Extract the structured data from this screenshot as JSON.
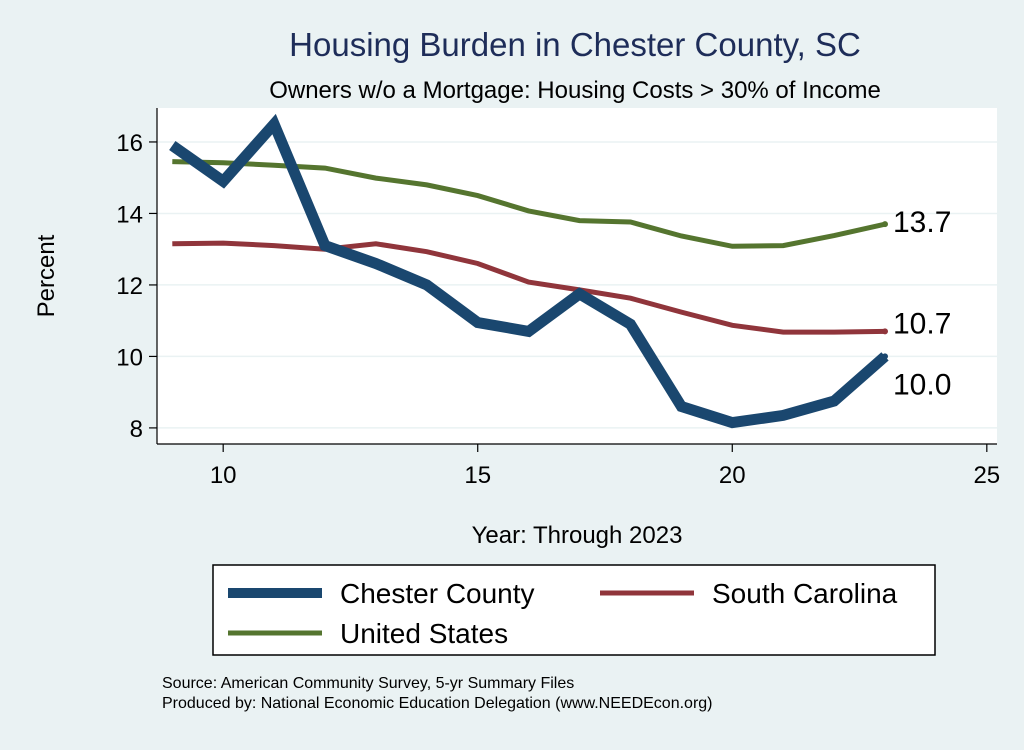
{
  "chart_data": {
    "type": "line",
    "title": "Housing Burden in Chester County, SC",
    "subtitle": "Owners w/o a Mortgage: Housing Costs > 30% of Income",
    "xlabel": "Year: Through 2023",
    "ylabel": "Percent",
    "xlim": [
      8.7,
      25.2
    ],
    "ylim": [
      7.55,
      16.95
    ],
    "xticks": [
      10,
      15,
      20,
      25
    ],
    "yticks": [
      8,
      10,
      12,
      14,
      16
    ],
    "grid": "horizontal",
    "legend_placement": "bottom",
    "x": [
      9,
      10,
      11,
      12,
      13,
      14,
      15,
      16,
      17,
      18,
      19,
      20,
      21,
      22,
      23
    ],
    "series": [
      {
        "name": "Chester County",
        "color": "#1a476f",
        "end_label": "10.0",
        "values": [
          15.9,
          14.9,
          16.5,
          13.1,
          12.6,
          12.0,
          10.95,
          10.7,
          11.75,
          10.9,
          8.6,
          8.15,
          8.35,
          8.75,
          10.0
        ]
      },
      {
        "name": "South Carolina",
        "color": "#90353b",
        "end_label": "10.7",
        "values": [
          13.15,
          13.17,
          13.1,
          13.0,
          13.15,
          12.93,
          12.6,
          12.08,
          11.86,
          11.63,
          11.24,
          10.87,
          10.68,
          10.68,
          10.7
        ]
      },
      {
        "name": "United States",
        "color": "#55752f",
        "end_label": "13.7",
        "values": [
          15.45,
          15.42,
          15.35,
          15.27,
          14.99,
          14.8,
          14.5,
          14.07,
          13.8,
          13.76,
          13.37,
          13.08,
          13.1,
          13.38,
          13.7
        ]
      }
    ]
  },
  "notes": {
    "source": "Source: American Community Survey, 5-yr Summary Files",
    "produced_by": "Produced by: National Economic Education Delegation (www.NEEDEcon.org)"
  }
}
